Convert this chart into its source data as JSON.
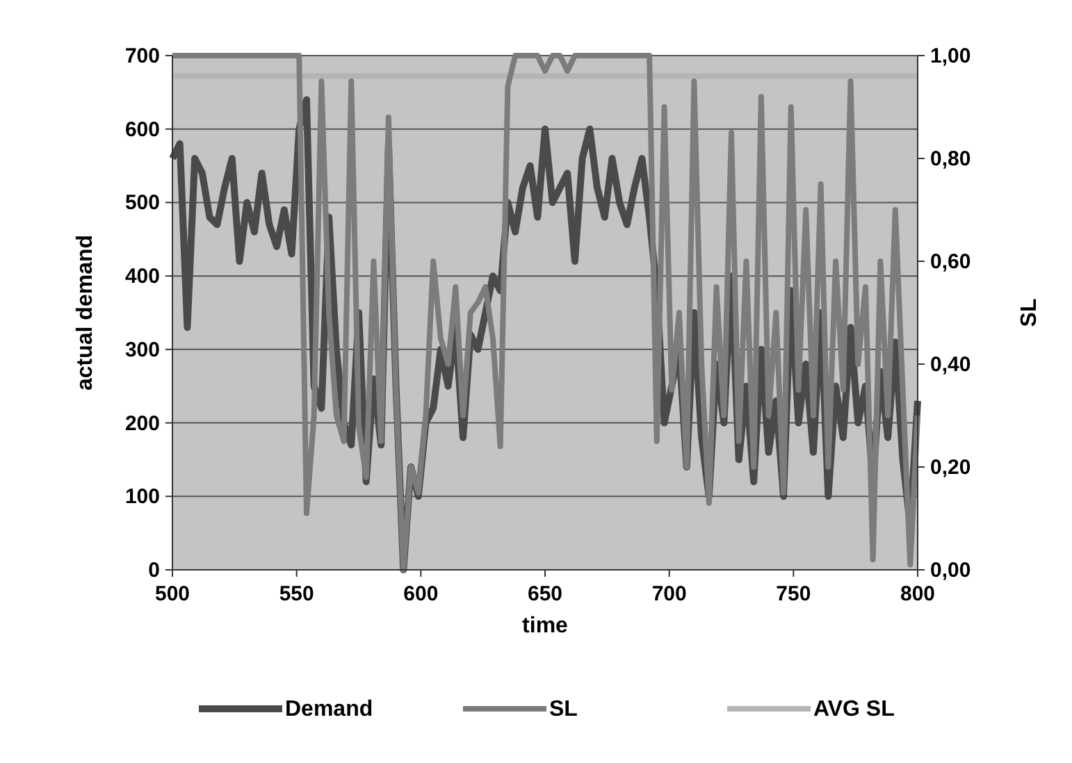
{
  "chart_data": {
    "type": "line",
    "xlabel": "time",
    "ylabel": "actual demand",
    "y2label": "SL",
    "x": [
      500,
      503,
      506,
      509,
      512,
      515,
      518,
      521,
      524,
      527,
      530,
      533,
      536,
      539,
      542,
      545,
      548,
      551,
      554,
      557,
      560,
      563,
      566,
      569,
      572,
      575,
      578,
      581,
      584,
      587,
      590,
      593,
      596,
      599,
      602,
      605,
      608,
      611,
      614,
      617,
      620,
      623,
      626,
      629,
      632,
      635,
      638,
      641,
      644,
      647,
      650,
      653,
      656,
      659,
      662,
      665,
      668,
      671,
      674,
      677,
      680,
      683,
      686,
      689,
      692,
      695,
      698,
      701,
      704,
      707,
      710,
      713,
      716,
      719,
      722,
      725,
      728,
      731,
      734,
      737,
      740,
      743,
      746,
      749,
      752,
      755,
      758,
      761,
      764,
      767,
      770,
      773,
      776,
      779,
      782,
      785,
      788,
      791,
      794,
      797,
      800
    ],
    "series": [
      {
        "name": "Demand",
        "color": "#4a4a4a",
        "values": [
          560,
          580,
          330,
          560,
          540,
          480,
          470,
          520,
          560,
          420,
          500,
          460,
          540,
          470,
          440,
          490,
          430,
          600,
          640,
          250,
          220,
          480,
          300,
          200,
          170,
          350,
          120,
          260,
          170,
          580,
          250,
          0,
          140,
          100,
          200,
          220,
          300,
          250,
          330,
          180,
          320,
          300,
          350,
          400,
          380,
          500,
          460,
          520,
          550,
          480,
          600,
          500,
          520,
          540,
          420,
          560,
          600,
          520,
          480,
          560,
          500,
          470,
          520,
          560,
          480,
          380,
          200,
          250,
          300,
          140,
          350,
          180,
          100,
          280,
          200,
          400,
          150,
          250,
          120,
          300,
          160,
          230,
          100,
          380,
          200,
          280,
          160,
          350,
          100,
          250,
          180,
          330,
          200,
          250,
          120,
          270,
          180,
          310,
          150,
          60,
          230
        ]
      },
      {
        "name": "SL",
        "color": "#7c7c7c",
        "axis": "y2",
        "values": [
          1,
          1,
          1,
          1,
          1,
          1,
          1,
          1,
          1,
          1,
          1,
          1,
          1,
          1,
          1,
          1,
          1,
          1,
          0.11,
          0.3,
          0.95,
          0.5,
          0.3,
          0.25,
          0.95,
          0.28,
          0.18,
          0.6,
          0.25,
          0.88,
          0.35,
          0,
          0.2,
          0.15,
          0.3,
          0.6,
          0.45,
          0.4,
          0.55,
          0.3,
          0.5,
          0.52,
          0.55,
          0.45,
          0.24,
          0.94,
          1,
          1,
          1,
          1,
          0.97,
          1,
          1,
          0.97,
          1,
          1,
          1,
          1,
          1,
          1,
          1,
          1,
          1,
          1,
          1,
          0.25,
          0.9,
          0.35,
          0.5,
          0.2,
          0.95,
          0.4,
          0.13,
          0.55,
          0.3,
          0.85,
          0.25,
          0.6,
          0.2,
          0.92,
          0.3,
          0.5,
          0.15,
          0.9,
          0.35,
          0.7,
          0.3,
          0.75,
          0.2,
          0.6,
          0.35,
          0.95,
          0.4,
          0.55,
          0.02,
          0.6,
          0.3,
          0.7,
          0.35,
          0.01,
          0.3
        ]
      },
      {
        "name": "AVG SL",
        "color": "#b4b4b4",
        "axis": "y2",
        "x": [
          500,
          800
        ],
        "values": [
          0.96,
          0.96
        ]
      }
    ],
    "xlim": [
      500,
      800
    ],
    "xticks": [
      500,
      550,
      600,
      650,
      700,
      750,
      800
    ],
    "ylim": [
      0,
      700
    ],
    "yticks": [
      0,
      100,
      200,
      300,
      400,
      500,
      600,
      700
    ],
    "y2lim": [
      0,
      1
    ],
    "y2ticks": [
      {
        "value": 0,
        "label": "0,00"
      },
      {
        "value": 0.2,
        "label": "0,20"
      },
      {
        "value": 0.4,
        "label": "0,40"
      },
      {
        "value": 0.6,
        "label": "0,60"
      },
      {
        "value": 0.8,
        "label": "0,80"
      },
      {
        "value": 1,
        "label": "1,00"
      }
    ],
    "grid": "y",
    "legend": "bottom",
    "line_style": "solid"
  }
}
